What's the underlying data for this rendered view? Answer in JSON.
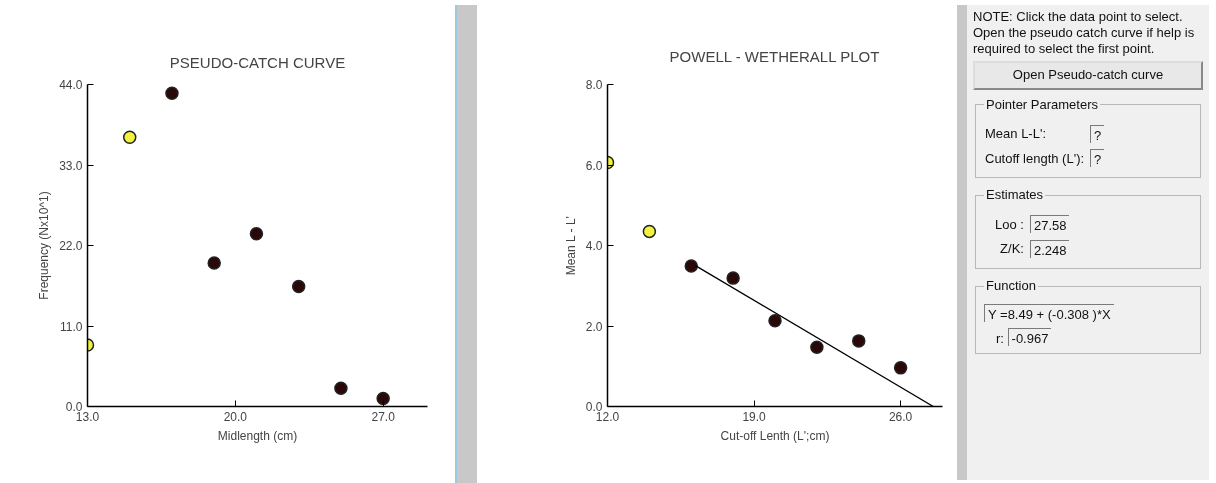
{
  "chart_data": [
    {
      "type": "scatter",
      "title": "PSEUDO-CATCH CURVE",
      "xlabel": "Midlength (cm)",
      "ylabel": "Frequency (Nx10^1)",
      "marker": "circle",
      "grid": false,
      "xlim": [
        13,
        29.1
      ],
      "ylim": [
        0,
        44
      ],
      "xticks": [
        {
          "value": 13,
          "label": "13.0"
        },
        {
          "value": 20,
          "label": "20.0"
        },
        {
          "value": 27,
          "label": "27.0"
        }
      ],
      "yticks": [
        {
          "value": 0,
          "label": "0.0"
        },
        {
          "value": 11,
          "label": "11.0"
        },
        {
          "value": 22,
          "label": "22.0"
        },
        {
          "value": 33,
          "label": "33.0"
        },
        {
          "value": 44,
          "label": "44.0"
        }
      ],
      "series": [
        {
          "color": "#f2f23c",
          "x": [
            13,
            15
          ],
          "values": [
            8.4,
            36.8
          ]
        },
        {
          "color": "#2a0808",
          "x": [
            17,
            19,
            21,
            23,
            25,
            27
          ],
          "values": [
            42.8,
            19.6,
            23.6,
            16.4,
            2.5,
            1.1
          ]
        }
      ]
    },
    {
      "type": "scatter",
      "title": "POWELL - WETHERALL PLOT",
      "xlabel": "Cut-off Lenth (L';cm)",
      "ylabel": "Mean L - L'",
      "marker": "circle",
      "grid": false,
      "xlim": [
        12,
        28
      ],
      "ylim": [
        0,
        8
      ],
      "xticks": [
        {
          "value": 12,
          "label": "12.0"
        },
        {
          "value": 19,
          "label": "19.0"
        },
        {
          "value": 26,
          "label": "26.0"
        }
      ],
      "yticks": [
        {
          "value": 0,
          "label": "0.0"
        },
        {
          "value": 2,
          "label": "2.0"
        },
        {
          "value": 4,
          "label": "4.0"
        },
        {
          "value": 6,
          "label": "6.0"
        },
        {
          "value": 8,
          "label": "8.0"
        }
      ],
      "series": [
        {
          "color": "#f2f23c",
          "x": [
            12,
            14
          ],
          "values": [
            6.06,
            4.35
          ]
        },
        {
          "color": "#2a0808",
          "x": [
            16,
            18,
            20,
            22,
            24,
            26
          ],
          "values": [
            3.49,
            3.19,
            2.13,
            1.47,
            1.63,
            0.96
          ]
        },
        {
          "type": "line",
          "marker": "none",
          "line_style": "solid",
          "color": "#000000",
          "x": [
            16.2,
            27.56
          ],
          "values": [
            3.5,
            0
          ]
        }
      ]
    },
    {
      "type": "other",
      "annotations": [
        "NOTE: Click the data point to select. Open the pseudo catch curve if help is required to select the first point.",
        "Open Pseudo-catch curve",
        "Pointer Parameters",
        "Mean L-L':",
        "?",
        "Cutoff length (L'):",
        "?",
        "Estimates",
        "Loo :",
        "27.58",
        "Z/K:",
        "2.248",
        "Function",
        "Y =8.49 + (-0.308 )*X",
        "r:",
        "-0.967"
      ]
    }
  ]
}
